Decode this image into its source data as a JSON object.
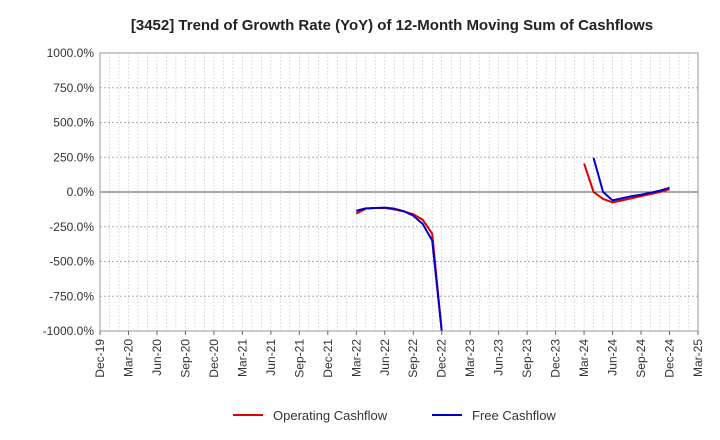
{
  "chart_data": {
    "type": "line",
    "title": "[3452]  Trend of Growth Rate (YoY) of 12-Month Moving Sum of Cashflows",
    "xlabel": "",
    "ylabel": "",
    "ylim": [
      -1000,
      1000
    ],
    "y_ticks": [
      "1000.0%",
      "750.0%",
      "500.0%",
      "250.0%",
      "0.0%",
      "-250.0%",
      "-500.0%",
      "-750.0%",
      "-1000.0%"
    ],
    "y_tick_values": [
      1000,
      750,
      500,
      250,
      0,
      -250,
      -500,
      -750,
      -1000
    ],
    "x_ticks": [
      "Dec-19",
      "Mar-20",
      "Jun-20",
      "Sep-20",
      "Dec-20",
      "Mar-21",
      "Jun-21",
      "Sep-21",
      "Dec-21",
      "Mar-22",
      "Jun-22",
      "Sep-22",
      "Dec-22",
      "Mar-23",
      "Jun-23",
      "Sep-23",
      "Dec-23",
      "Mar-24",
      "Jun-24",
      "Sep-24",
      "Dec-24",
      "Mar-25"
    ],
    "grid": true,
    "legend_position": "bottom",
    "series": [
      {
        "name": "Operating Cashflow",
        "color": "#e00000",
        "segments": [
          [
            {
              "x": "Mar-22",
              "y": -155
            },
            {
              "x": "Apr-22",
              "y": -120
            },
            {
              "x": "May-22",
              "y": -115
            },
            {
              "x": "Jun-22",
              "y": -115
            },
            {
              "x": "Jul-22",
              "y": -125
            },
            {
              "x": "Aug-22",
              "y": -140
            },
            {
              "x": "Sep-22",
              "y": -160
            },
            {
              "x": "Oct-22",
              "y": -200
            },
            {
              "x": "Nov-22",
              "y": -300
            },
            {
              "x": "Dec-22",
              "y": -1000
            }
          ],
          [
            {
              "x": "Mar-24",
              "y": 205
            },
            {
              "x": "Apr-24",
              "y": 0
            },
            {
              "x": "May-24",
              "y": -50
            },
            {
              "x": "Jun-24",
              "y": -75
            },
            {
              "x": "Jul-24",
              "y": -60
            },
            {
              "x": "Aug-24",
              "y": -45
            },
            {
              "x": "Sep-24",
              "y": -30
            },
            {
              "x": "Oct-24",
              "y": -15
            },
            {
              "x": "Nov-24",
              "y": 0
            },
            {
              "x": "Dec-24",
              "y": 20
            }
          ]
        ]
      },
      {
        "name": "Free Cashflow",
        "color": "#0000cc",
        "segments": [
          [
            {
              "x": "Mar-22",
              "y": -135
            },
            {
              "x": "Apr-22",
              "y": -118
            },
            {
              "x": "May-22",
              "y": -115
            },
            {
              "x": "Jun-22",
              "y": -112
            },
            {
              "x": "Jul-22",
              "y": -120
            },
            {
              "x": "Aug-22",
              "y": -138
            },
            {
              "x": "Sep-22",
              "y": -170
            },
            {
              "x": "Oct-22",
              "y": -230
            },
            {
              "x": "Nov-22",
              "y": -350
            },
            {
              "x": "Dec-22",
              "y": -1000
            }
          ],
          [
            {
              "x": "Apr-24",
              "y": 245
            },
            {
              "x": "May-24",
              "y": 0
            },
            {
              "x": "Jun-24",
              "y": -60
            },
            {
              "x": "Jul-24",
              "y": -45
            },
            {
              "x": "Aug-24",
              "y": -30
            },
            {
              "x": "Sep-24",
              "y": -20
            },
            {
              "x": "Oct-24",
              "y": -5
            },
            {
              "x": "Nov-24",
              "y": 10
            },
            {
              "x": "Dec-24",
              "y": 30
            }
          ]
        ]
      }
    ]
  }
}
